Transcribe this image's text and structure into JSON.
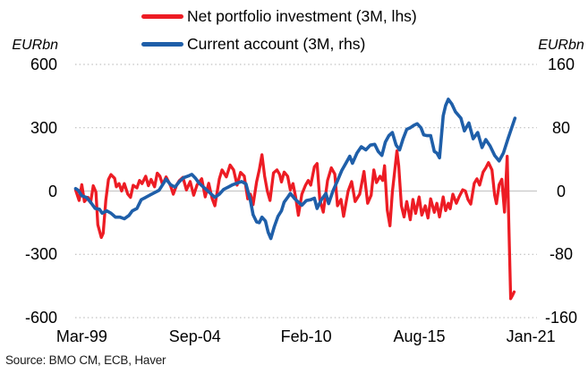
{
  "source": "Source: BMO CM, ECB, Haver",
  "chart_data": {
    "type": "line",
    "title": "",
    "legend_position": "top",
    "grid": "dotted horizontal gridlines with solid light zero line, no plot border",
    "x_axis": {
      "tick_labels": [
        "Mar-99",
        "Sep-04",
        "Feb-10",
        "Aug-15",
        "Jan-21"
      ],
      "tick_positions": [
        1999.17,
        2004.67,
        2010.08,
        2015.58,
        2021.0
      ],
      "range": [
        1998.85,
        2021.3
      ]
    },
    "left_axis": {
      "unit_label": "EURbn",
      "ticks": [
        "600",
        "300",
        "0",
        "-300",
        "-600"
      ],
      "tick_values": [
        600,
        300,
        0,
        -300,
        -600
      ],
      "range": [
        -600,
        600
      ]
    },
    "right_axis": {
      "unit_label": "EURbn",
      "ticks": [
        "160",
        "80",
        "0",
        "-80",
        "-160"
      ],
      "tick_values": [
        160,
        80,
        0,
        -80,
        -160
      ],
      "range": [
        -160,
        160
      ]
    },
    "series": [
      {
        "name": "Net portfolio investment (3M, lhs)",
        "axis": "left",
        "color": "#ed1c24",
        "points": [
          [
            1998.87,
            5
          ],
          [
            1999.04,
            -45
          ],
          [
            1999.17,
            30
          ],
          [
            1999.3,
            -50
          ],
          [
            1999.47,
            -30
          ],
          [
            1999.6,
            -55
          ],
          [
            1999.73,
            25
          ],
          [
            1999.86,
            -5
          ],
          [
            1999.95,
            -160
          ],
          [
            2000.12,
            -220
          ],
          [
            2000.21,
            -200
          ],
          [
            2000.34,
            -45
          ],
          [
            2000.47,
            55
          ],
          [
            2000.59,
            78
          ],
          [
            2000.77,
            60
          ],
          [
            2000.85,
            20
          ],
          [
            2000.98,
            35
          ],
          [
            2001.11,
            0
          ],
          [
            2001.24,
            35
          ],
          [
            2001.41,
            -15
          ],
          [
            2001.54,
            -30
          ],
          [
            2001.67,
            27
          ],
          [
            2001.85,
            15
          ],
          [
            2001.98,
            50
          ],
          [
            2002.1,
            35
          ],
          [
            2002.28,
            70
          ],
          [
            2002.41,
            25
          ],
          [
            2002.54,
            55
          ],
          [
            2002.71,
            20
          ],
          [
            2002.84,
            85
          ],
          [
            2002.97,
            70
          ],
          [
            2003.1,
            30
          ],
          [
            2003.27,
            67
          ],
          [
            2003.49,
            25
          ],
          [
            2003.62,
            -15
          ],
          [
            2003.79,
            30
          ],
          [
            2003.92,
            50
          ],
          [
            2004.09,
            65
          ],
          [
            2004.26,
            5
          ],
          [
            2004.44,
            45
          ],
          [
            2004.61,
            -20
          ],
          [
            2004.78,
            30
          ],
          [
            2005.0,
            58
          ],
          [
            2005.17,
            -28
          ],
          [
            2005.34,
            37
          ],
          [
            2005.51,
            -37
          ],
          [
            2005.64,
            -70
          ],
          [
            2005.86,
            58
          ],
          [
            2005.99,
            100
          ],
          [
            2006.2,
            67
          ],
          [
            2006.38,
            123
          ],
          [
            2006.55,
            100
          ],
          [
            2006.72,
            28
          ],
          [
            2006.89,
            88
          ],
          [
            2007.07,
            71
          ],
          [
            2007.24,
            -37
          ],
          [
            2007.37,
            -15
          ],
          [
            2007.5,
            -65
          ],
          [
            2007.67,
            43
          ],
          [
            2007.8,
            100
          ],
          [
            2007.93,
            172
          ],
          [
            2008.06,
            70
          ],
          [
            2008.19,
            0
          ],
          [
            2008.32,
            -45
          ],
          [
            2008.49,
            86
          ],
          [
            2008.66,
            100
          ],
          [
            2008.79,
            78
          ],
          [
            2008.88,
            43
          ],
          [
            2009.01,
            90
          ],
          [
            2009.18,
            70
          ],
          [
            2009.31,
            5
          ],
          [
            2009.44,
            35
          ],
          [
            2009.57,
            -30
          ],
          [
            2009.7,
            -115
          ],
          [
            2009.87,
            -15
          ],
          [
            2010.05,
            28
          ],
          [
            2010.18,
            50
          ],
          [
            2010.3,
            28
          ],
          [
            2010.48,
            115
          ],
          [
            2010.61,
            130
          ],
          [
            2010.74,
            -40
          ],
          [
            2010.91,
            -100
          ],
          [
            2011.12,
            50
          ],
          [
            2011.3,
            110
          ],
          [
            2011.47,
            80
          ],
          [
            2011.6,
            -70
          ],
          [
            2011.77,
            -40
          ],
          [
            2011.9,
            -120
          ],
          [
            2012.12,
            0
          ],
          [
            2012.29,
            45
          ],
          [
            2012.46,
            -50
          ],
          [
            2012.68,
            -15
          ],
          [
            2012.89,
            93
          ],
          [
            2013.07,
            -58
          ],
          [
            2013.24,
            -20
          ],
          [
            2013.37,
            100
          ],
          [
            2013.5,
            40
          ],
          [
            2013.67,
            70
          ],
          [
            2013.8,
            50
          ],
          [
            2013.89,
            120
          ],
          [
            2014.02,
            -90
          ],
          [
            2014.15,
            -165
          ],
          [
            2014.27,
            -5
          ],
          [
            2014.49,
            190
          ],
          [
            2014.58,
            120
          ],
          [
            2014.71,
            -70
          ],
          [
            2014.84,
            -123
          ],
          [
            2014.97,
            -50
          ],
          [
            2015.14,
            -136
          ],
          [
            2015.27,
            -40
          ],
          [
            2015.4,
            -106
          ],
          [
            2015.57,
            -28
          ],
          [
            2015.7,
            -114
          ],
          [
            2015.87,
            -70
          ],
          [
            2016.0,
            -128
          ],
          [
            2016.13,
            -37
          ],
          [
            2016.31,
            -101
          ],
          [
            2016.43,
            -58
          ],
          [
            2016.56,
            -123
          ],
          [
            2016.74,
            -28
          ],
          [
            2016.86,
            -93
          ],
          [
            2016.99,
            -58
          ],
          [
            2017.08,
            -84
          ],
          [
            2017.21,
            -15
          ],
          [
            2017.38,
            -58
          ],
          [
            2017.51,
            -28
          ],
          [
            2017.69,
            6
          ],
          [
            2017.82,
            0
          ],
          [
            2017.95,
            -41
          ],
          [
            2018.08,
            -62
          ],
          [
            2018.25,
            37
          ],
          [
            2018.38,
            58
          ],
          [
            2018.51,
            28
          ],
          [
            2018.68,
            90
          ],
          [
            2018.81,
            110
          ],
          [
            2018.94,
            135
          ],
          [
            2019.11,
            100
          ],
          [
            2019.24,
            -20
          ],
          [
            2019.33,
            -60
          ],
          [
            2019.46,
            30
          ],
          [
            2019.59,
            56
          ],
          [
            2019.72,
            -100
          ],
          [
            2019.85,
            165
          ],
          [
            2019.93,
            -150
          ],
          [
            2020.02,
            -510
          ],
          [
            2020.11,
            -495
          ],
          [
            2020.19,
            -478
          ]
        ]
      },
      {
        "name": "Current account (3M, rhs)",
        "axis": "right",
        "color": "#1f5fa9",
        "points": [
          [
            1998.87,
            3
          ],
          [
            1999.0,
            1
          ],
          [
            1999.17,
            -6
          ],
          [
            1999.39,
            -8
          ],
          [
            1999.6,
            -14
          ],
          [
            1999.82,
            -22
          ],
          [
            2000.03,
            -23
          ],
          [
            2000.16,
            -28
          ],
          [
            2000.38,
            -25
          ],
          [
            2000.59,
            -28
          ],
          [
            2000.81,
            -33
          ],
          [
            2001.03,
            -33
          ],
          [
            2001.24,
            -35
          ],
          [
            2001.46,
            -31
          ],
          [
            2001.63,
            -25
          ],
          [
            2001.85,
            -22
          ],
          [
            2002.06,
            -11
          ],
          [
            2002.28,
            -8
          ],
          [
            2002.49,
            -5
          ],
          [
            2002.71,
            -2
          ],
          [
            2002.93,
            1
          ],
          [
            2003.1,
            8
          ],
          [
            2003.27,
            15
          ],
          [
            2003.49,
            8
          ],
          [
            2003.7,
            5
          ],
          [
            2003.92,
            12
          ],
          [
            2004.13,
            17
          ],
          [
            2004.35,
            19
          ],
          [
            2004.52,
            21
          ],
          [
            2004.7,
            16
          ],
          [
            2004.87,
            10
          ],
          [
            2005.04,
            6
          ],
          [
            2005.21,
            2
          ],
          [
            2005.43,
            -3
          ],
          [
            2005.64,
            -8
          ],
          [
            2005.86,
            -4
          ],
          [
            2006.07,
            2
          ],
          [
            2006.29,
            5
          ],
          [
            2006.51,
            8
          ],
          [
            2006.72,
            10
          ],
          [
            2006.94,
            12
          ],
          [
            2007.15,
            9
          ],
          [
            2007.37,
            -12
          ],
          [
            2007.5,
            -30
          ],
          [
            2007.67,
            -39
          ],
          [
            2007.8,
            -40
          ],
          [
            2007.93,
            -33
          ],
          [
            2008.1,
            -38
          ],
          [
            2008.23,
            -52
          ],
          [
            2008.36,
            -60
          ],
          [
            2008.53,
            -45
          ],
          [
            2008.71,
            -32
          ],
          [
            2008.88,
            -25
          ],
          [
            2009.01,
            -14
          ],
          [
            2009.18,
            -8
          ],
          [
            2009.31,
            -3
          ],
          [
            2009.53,
            -10
          ],
          [
            2009.7,
            -14
          ],
          [
            2009.87,
            -18
          ],
          [
            2010.09,
            -12
          ],
          [
            2010.3,
            -11
          ],
          [
            2010.48,
            -9
          ],
          [
            2010.61,
            -22
          ],
          [
            2010.82,
            -11
          ],
          [
            2011.04,
            -3
          ],
          [
            2011.17,
            -16
          ],
          [
            2011.38,
            0
          ],
          [
            2011.6,
            13
          ],
          [
            2011.81,
            26
          ],
          [
            2012.03,
            36
          ],
          [
            2012.2,
            44
          ],
          [
            2012.33,
            35
          ],
          [
            2012.55,
            48
          ],
          [
            2012.76,
            56
          ],
          [
            2012.98,
            52
          ],
          [
            2013.2,
            58
          ],
          [
            2013.41,
            59
          ],
          [
            2013.58,
            50
          ],
          [
            2013.76,
            45
          ],
          [
            2013.93,
            62
          ],
          [
            2014.1,
            70
          ],
          [
            2014.27,
            74
          ],
          [
            2014.45,
            58
          ],
          [
            2014.62,
            52
          ],
          [
            2014.79,
            66
          ],
          [
            2014.97,
            78
          ],
          [
            2015.14,
            80
          ],
          [
            2015.31,
            83
          ],
          [
            2015.48,
            85
          ],
          [
            2015.66,
            80
          ],
          [
            2015.79,
            71
          ],
          [
            2015.96,
            70
          ],
          [
            2016.13,
            70
          ],
          [
            2016.31,
            50
          ],
          [
            2016.43,
            48
          ],
          [
            2016.56,
            42
          ],
          [
            2016.74,
            95
          ],
          [
            2016.86,
            108
          ],
          [
            2016.99,
            116
          ],
          [
            2017.16,
            110
          ],
          [
            2017.34,
            100
          ],
          [
            2017.47,
            96
          ],
          [
            2017.6,
            92
          ],
          [
            2017.77,
            76
          ],
          [
            2017.99,
            86
          ],
          [
            2018.2,
            66
          ],
          [
            2018.42,
            74
          ],
          [
            2018.63,
            55
          ],
          [
            2018.81,
            65
          ],
          [
            2019.02,
            57
          ],
          [
            2019.24,
            45
          ],
          [
            2019.46,
            38
          ],
          [
            2019.67,
            48
          ],
          [
            2019.89,
            66
          ],
          [
            2020.06,
            79
          ],
          [
            2020.23,
            92
          ]
        ]
      }
    ]
  }
}
